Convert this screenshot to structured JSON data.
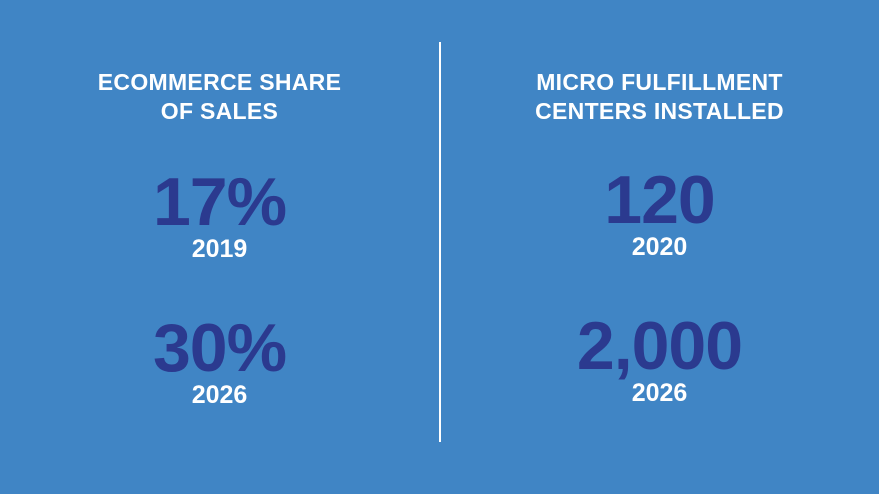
{
  "background_color": "#4085c5",
  "value_color": "#2b3a8f",
  "panels": [
    {
      "heading": [
        "ECOMMERCE SHARE",
        "OF SALES"
      ],
      "stats": [
        {
          "value": "17%",
          "year": "2019"
        },
        {
          "value": "30%",
          "year": "2026"
        }
      ]
    },
    {
      "heading": [
        "MICRO FULFILLMENT",
        "CENTERS INSTALLED"
      ],
      "stats": [
        {
          "value": "120",
          "year": "2020"
        },
        {
          "value": "2,000",
          "year": "2026"
        }
      ]
    }
  ]
}
